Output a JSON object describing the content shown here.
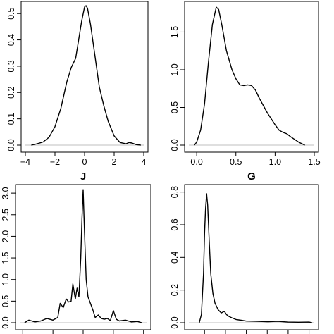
{
  "chart_data": [
    {
      "type": "line",
      "title": "",
      "xlabel": "",
      "ylabel": "",
      "xlim": [
        -4,
        4
      ],
      "ylim": [
        0,
        0.53
      ],
      "xticks": [
        -4,
        -2,
        0,
        2,
        4
      ],
      "yticks": [
        0.0,
        0.1,
        0.2,
        0.3,
        0.4,
        0.5
      ],
      "xtick_labels": [
        "−4",
        "−2",
        "0",
        "2",
        "4"
      ],
      "ytick_labels": [
        "0.0",
        "0.1",
        "0.2",
        "0.3",
        "0.4",
        "0.5"
      ],
      "baseline_color": "#bfbfbf",
      "series": [
        {
          "x": [
            -3.6,
            -3.2,
            -2.8,
            -2.4,
            -2.0,
            -1.6,
            -1.2,
            -0.9,
            -0.6,
            -0.4,
            -0.2,
            0.0,
            0.1,
            0.2,
            0.4,
            0.6,
            0.8,
            1.0,
            1.3,
            1.6,
            2.0,
            2.4,
            2.8,
            3.0,
            3.2,
            3.5,
            3.8
          ],
          "y": [
            0.0,
            0.005,
            0.012,
            0.03,
            0.07,
            0.14,
            0.24,
            0.295,
            0.33,
            0.4,
            0.47,
            0.525,
            0.53,
            0.52,
            0.46,
            0.38,
            0.3,
            0.22,
            0.15,
            0.09,
            0.035,
            0.01,
            0.005,
            0.01,
            0.008,
            0.002,
            0.0
          ]
        }
      ]
    },
    {
      "type": "line",
      "title": "",
      "xlabel": "",
      "ylabel": "",
      "xlim": [
        -0.1,
        1.5
      ],
      "ylim": [
        0,
        1.85
      ],
      "xticks": [
        0.0,
        0.5,
        1.0,
        1.5
      ],
      "yticks": [
        0.0,
        0.5,
        1.0,
        1.5
      ],
      "xtick_labels": [
        "0.0",
        "0.5",
        "1.0",
        "1.5"
      ],
      "ytick_labels": [
        "0.0",
        "0.5",
        "1.0",
        "1.5"
      ],
      "baseline_color": "#bfbfbf",
      "series": [
        {
          "x": [
            -0.03,
            0.0,
            0.05,
            0.1,
            0.15,
            0.2,
            0.25,
            0.28,
            0.32,
            0.38,
            0.45,
            0.5,
            0.55,
            0.6,
            0.65,
            0.7,
            0.75,
            0.8,
            0.9,
            1.0,
            1.05,
            1.1,
            1.15,
            1.2,
            1.3,
            1.38
          ],
          "y": [
            0.0,
            0.04,
            0.2,
            0.55,
            1.1,
            1.6,
            1.83,
            1.8,
            1.6,
            1.25,
            1.0,
            0.88,
            0.8,
            0.79,
            0.8,
            0.79,
            0.73,
            0.62,
            0.43,
            0.27,
            0.2,
            0.17,
            0.15,
            0.11,
            0.04,
            0.0
          ]
        }
      ]
    },
    {
      "type": "line",
      "title": "J",
      "xlabel": "",
      "ylabel": "",
      "xlim": [
        -1.05,
        1.05
      ],
      "ylim": [
        0,
        3.1
      ],
      "xticks": [
        -1.0,
        -0.5,
        0.0,
        0.5,
        1.0
      ],
      "yticks": [
        0.0,
        0.5,
        1.0,
        1.5,
        2.0,
        2.5,
        3.0
      ],
      "xtick_labels": [],
      "ytick_labels": [
        "0.0",
        "0.5",
        "1.0",
        "1.5",
        "2.0",
        "2.5",
        "3.0"
      ],
      "baseline_color": "#bfbfbf",
      "series": [
        {
          "x": [
            -0.97,
            -0.9,
            -0.8,
            -0.7,
            -0.6,
            -0.5,
            -0.42,
            -0.38,
            -0.33,
            -0.28,
            -0.24,
            -0.2,
            -0.17,
            -0.13,
            -0.1,
            -0.07,
            -0.04,
            -0.02,
            0.0,
            0.02,
            0.05,
            0.08,
            0.12,
            0.16,
            0.2,
            0.25,
            0.3,
            0.35,
            0.4,
            0.45,
            0.5,
            0.55,
            0.6,
            0.7,
            0.8,
            0.9,
            0.97
          ],
          "y": [
            0.0,
            0.06,
            0.02,
            0.04,
            0.1,
            0.06,
            0.12,
            0.45,
            0.35,
            0.55,
            0.48,
            0.5,
            0.9,
            0.55,
            0.8,
            0.6,
            1.5,
            2.4,
            3.08,
            2.2,
            1.0,
            0.6,
            0.45,
            0.3,
            0.12,
            0.18,
            0.1,
            0.08,
            0.1,
            0.05,
            0.28,
            0.08,
            0.04,
            0.06,
            0.02,
            0.03,
            0.0
          ]
        }
      ]
    },
    {
      "type": "line",
      "title": "G",
      "xlabel": "",
      "ylabel": "",
      "xlim": [
        -0.15,
        1.05
      ],
      "ylim": [
        0,
        0.82
      ],
      "xticks": [
        0.0,
        0.2,
        0.4,
        0.6,
        0.8,
        1.0
      ],
      "yticks": [
        0.0,
        0.2,
        0.4,
        0.6,
        0.8
      ],
      "xtick_labels": [],
      "ytick_labels": [
        "0.0",
        "0.2",
        "0.4",
        "0.6",
        "0.8"
      ],
      "baseline_color": "#bfbfbf",
      "series": [
        {
          "x": [
            -0.05,
            -0.03,
            -0.01,
            0.0,
            0.01,
            0.02,
            0.03,
            0.045,
            0.06,
            0.08,
            0.1,
            0.13,
            0.16,
            0.19,
            0.21,
            0.23,
            0.26,
            0.3,
            0.35,
            0.4,
            0.5,
            0.6,
            0.7,
            0.8,
            0.9,
            1.0,
            1.03
          ],
          "y": [
            0.0,
            0.05,
            0.3,
            0.55,
            0.7,
            0.79,
            0.72,
            0.5,
            0.3,
            0.18,
            0.12,
            0.08,
            0.06,
            0.07,
            0.05,
            0.04,
            0.03,
            0.02,
            0.015,
            0.01,
            0.008,
            0.006,
            0.008,
            0.004,
            0.003,
            0.004,
            0.0
          ]
        }
      ]
    }
  ]
}
